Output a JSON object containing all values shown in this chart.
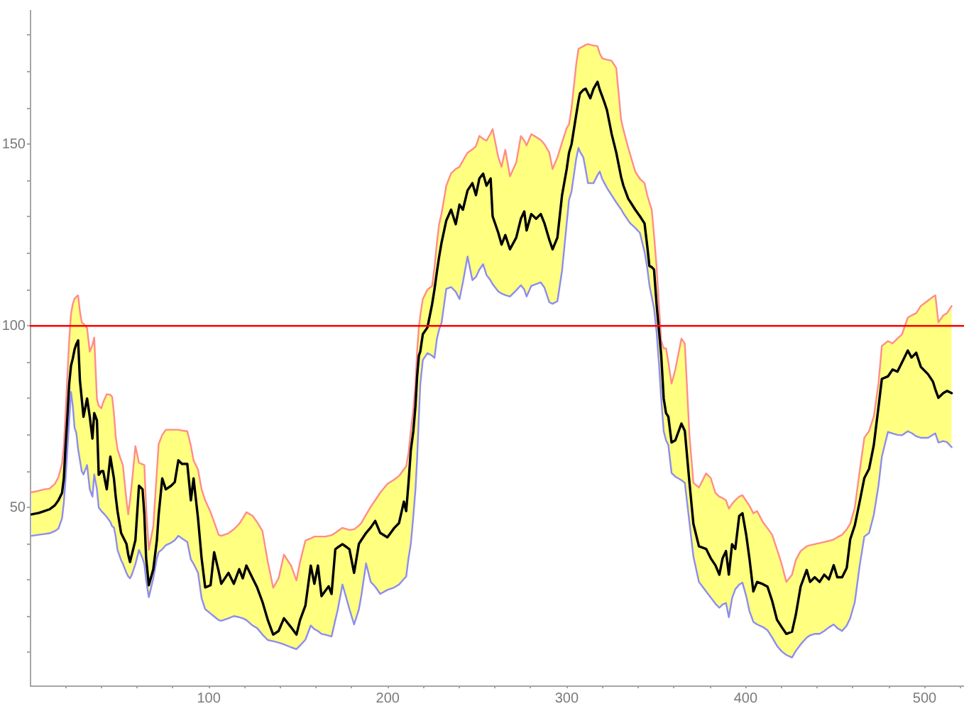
{
  "chart_data": {
    "type": "line",
    "x": [
      1,
      5,
      8,
      11,
      14,
      16,
      18,
      19,
      20,
      21,
      22,
      23,
      24,
      25,
      26,
      27,
      28,
      29,
      30,
      32,
      33.5,
      35,
      36,
      37.5,
      38.5,
      40,
      41,
      43,
      45,
      46,
      47,
      48,
      49,
      51,
      52,
      54,
      55,
      56,
      57,
      59,
      61,
      63,
      64,
      65,
      66.5,
      69,
      71,
      72,
      74,
      76,
      79,
      81,
      83,
      85,
      88,
      90,
      91.5,
      94,
      96,
      98,
      101,
      103,
      105.5,
      107,
      111,
      114,
      117,
      119,
      121,
      124.5,
      127,
      130,
      133,
      136,
      139,
      142,
      146,
      149,
      151,
      154,
      157,
      159,
      161,
      163,
      165,
      167,
      168.6,
      170.7,
      172,
      174.7,
      177.3,
      178.6,
      181.2,
      183.9,
      185.2,
      187.9,
      190.5,
      193,
      195.8,
      199.8,
      203.7,
      206.3,
      209,
      210.3,
      211.6,
      212.9,
      214.3,
      215.5,
      216.4,
      217.4,
      218.2,
      219.6,
      222.2,
      224.8,
      226.1,
      227.5,
      228.7,
      230.1,
      232.7,
      235.4,
      238,
      240.1,
      242,
      244.6,
      247.3,
      249.3,
      251.2,
      253.3,
      255.2,
      257.5,
      258.6,
      261.8,
      263.6,
      265.7,
      268.3,
      271.8,
      274.4,
      276.3,
      277.6,
      280.2,
      282.9,
      285.5,
      287.6,
      290.3,
      292.1,
      294.8,
      297.4,
      300,
      301.3,
      302.7,
      305.3,
      306.6,
      307.4,
      309.3,
      310.6,
      311.9,
      313.2,
      315,
      317.2,
      318.5,
      319.8,
      321.1,
      322.5,
      325.1,
      327.7,
      330.4,
      331.7,
      334.4,
      335.6,
      338.3,
      340.9,
      343.5,
      345,
      346.2,
      347.5,
      348.8,
      350.2,
      351.5,
      352.8,
      354.2,
      355.5,
      356.8,
      358.6,
      360.7,
      364.1,
      366,
      368.6,
      370.8,
      373.9,
      377.9,
      380.5,
      383.1,
      385.3,
      387.1,
      389,
      390.6,
      392.4,
      394.2,
      396.4,
      398.2,
      400.3,
      402.1,
      404.3,
      406.4,
      409.6,
      412.2,
      414.8,
      417.5,
      420.1,
      422.7,
      425.9,
      428,
      430.7,
      434.1,
      436,
      438.6,
      441.3,
      443.9,
      446.5,
      449.2,
      451.2,
      453.9,
      456.5,
      458.4,
      461,
      463.7,
      466.3,
      469,
      471.6,
      474.2,
      476.1,
      479.5,
      482.1,
      484.8,
      487.4,
      490.6,
      492.7,
      495.3,
      497.9,
      501.9,
      504.6,
      506,
      507.7,
      510.4,
      512.5,
      515.1
    ],
    "series": [
      {
        "color": "#000000",
        "values": [
          48.1,
          48.5,
          49,
          49.5,
          50.6,
          52,
          54,
          58,
          67,
          75,
          84,
          89,
          91,
          93.5,
          95,
          96,
          85,
          80,
          75,
          80,
          75,
          69,
          76,
          74,
          59,
          60,
          60,
          55,
          64,
          61,
          58,
          53,
          49,
          43,
          42,
          40,
          37,
          35,
          37,
          41,
          56,
          55,
          48,
          36,
          28.6,
          33,
          41,
          48,
          58,
          55,
          56,
          57,
          63,
          62,
          62,
          52,
          58,
          47,
          36,
          28,
          28.6,
          37.7,
          32.5,
          29,
          32,
          29,
          33,
          30.5,
          34,
          30.5,
          28,
          24,
          19,
          15,
          16,
          19.5,
          17,
          15,
          19,
          23,
          34,
          29,
          34,
          25.6,
          27,
          28.3,
          26.2,
          38.5,
          39,
          39.9,
          39,
          38.5,
          32,
          40,
          41,
          43,
          44.5,
          46.3,
          43,
          41.8,
          44.4,
          45.7,
          51.6,
          49,
          56.7,
          65.8,
          71,
          78,
          86,
          91.8,
          93,
          97.7,
          99.6,
          106,
          110,
          115,
          119,
          123,
          129,
          132,
          128,
          133.4,
          132,
          137.3,
          139.3,
          136,
          140.6,
          141.9,
          138.6,
          140.6,
          130.2,
          125.6,
          122.4,
          125,
          121.1,
          124.3,
          129.5,
          131.5,
          126.3,
          130.8,
          129.5,
          130.8,
          128.2,
          123.7,
          121.1,
          124.3,
          136,
          143.2,
          147.7,
          150,
          158.1,
          162,
          164,
          165,
          165.3,
          164,
          162.7,
          165.3,
          167.2,
          165,
          163.3,
          161.5,
          159.4,
          152.9,
          147.7,
          141,
          138.6,
          135,
          134.1,
          132,
          130.2,
          128.2,
          122,
          116.5,
          116.2,
          115.5,
          106.1,
          99,
          92,
          80,
          76,
          75,
          67.9,
          68.5,
          73.1,
          71.1,
          56.8,
          45.5,
          39.3,
          38.6,
          36,
          34.1,
          31.5,
          36,
          38,
          31.5,
          39.9,
          38.6,
          47.7,
          48.4,
          42.5,
          36,
          26.9,
          29.5,
          28.9,
          28.2,
          24.3,
          19.1,
          17.1,
          15.2,
          15.8,
          20.4,
          28.2,
          32.8,
          29.5,
          30.8,
          29.5,
          31.5,
          30.2,
          34.1,
          30.8,
          30.8,
          33.4,
          41.2,
          45.1,
          51.6,
          58.1,
          60.7,
          67.2,
          77.6,
          85.4,
          86.1,
          88,
          87.4,
          90,
          93.2,
          91.3,
          92.6,
          88.7,
          86.7,
          84.7,
          82.5,
          80.2,
          81.5,
          82.1,
          81.5
        ],
        "upper": [
          54.2,
          54.6,
          55,
          55.2,
          56.5,
          58.4,
          62,
          66.9,
          76,
          86.4,
          96,
          103.2,
          106,
          107.5,
          108,
          108.4,
          104,
          101,
          100.6,
          99.4,
          92.9,
          94.8,
          96.8,
          79.9,
          78,
          77.3,
          79,
          81.2,
          81,
          80.5,
          76,
          69.5,
          66,
          63,
          61.7,
          52,
          48.1,
          52,
          56.5,
          66.9,
          62.3,
          61.9,
          61.7,
          50,
          38.3,
          44.8,
          60,
          67.5,
          70,
          71.4,
          71.4,
          71.4,
          71.4,
          71.2,
          71,
          67,
          63,
          60.4,
          55,
          52,
          48.7,
          46,
          42.5,
          42.2,
          42.9,
          44,
          45.5,
          47,
          48.7,
          47.7,
          46,
          43.5,
          35,
          27.9,
          30.5,
          37,
          34,
          29.9,
          35,
          40.9,
          41.5,
          42,
          42,
          42,
          42,
          42.2,
          42.4,
          43,
          43.5,
          44.4,
          44,
          43.8,
          44,
          45,
          45.7,
          48,
          50.2,
          52,
          54.1,
          56.5,
          57.7,
          58.7,
          60.5,
          61.3,
          65,
          71.1,
          77,
          84,
          93,
          99.6,
          103,
          107.4,
          110,
          111,
          116,
          123,
          128,
          131,
          138.6,
          142,
          143.2,
          143.8,
          145.5,
          147.7,
          148.6,
          149.5,
          152.3,
          151.5,
          151,
          153,
          154.2,
          146.4,
          143.8,
          148.5,
          141.2,
          145,
          152.3,
          151,
          149.7,
          152.8,
          152,
          151.2,
          150,
          147.7,
          143.2,
          146.4,
          150.5,
          154.5,
          155.5,
          160,
          172,
          176.3,
          176.5,
          177,
          177.4,
          177.6,
          177.4,
          177.2,
          177,
          175,
          173.7,
          173.5,
          173.3,
          173,
          171,
          156.8,
          154,
          149,
          147,
          142.5,
          140.5,
          139.3,
          136,
          134,
          132.1,
          125,
          116.5,
          106,
          96,
          93.8,
          93.8,
          90,
          84.1,
          88,
          96.5,
          95.1,
          69.8,
          56.8,
          55.5,
          59.4,
          58.1,
          54,
          53,
          52.6,
          52,
          49.7,
          51,
          52,
          53,
          53.4,
          51.8,
          50.5,
          48.4,
          49,
          46,
          44.3,
          42.5,
          38.5,
          34.5,
          29.5,
          31.5,
          35.5,
          38,
          39.3,
          39.6,
          39.9,
          40.2,
          40.5,
          40.8,
          41.2,
          41.8,
          42.5,
          44,
          45.5,
          50,
          60,
          69.2,
          71.1,
          75,
          84.1,
          94.5,
          95.8,
          95.2,
          96.5,
          97.7,
          102.3,
          102.9,
          103.5,
          105.5,
          107,
          108,
          108.4,
          101,
          102.9,
          103.5,
          105.5
        ],
        "lower": [
          42.2,
          42.5,
          42.7,
          42.9,
          43.5,
          44.2,
          47,
          51.3,
          58,
          66,
          74,
          81.8,
          78,
          72,
          70.5,
          66,
          63,
          60,
          59.1,
          61.7,
          55,
          53,
          59.1,
          55,
          50,
          49,
          48.5,
          47.4,
          46,
          44.8,
          44.5,
          42,
          38.3,
          35.5,
          34.5,
          32,
          31,
          30.5,
          31.5,
          34.4,
          38.3,
          36,
          34.4,
          30,
          25.3,
          30.5,
          36,
          37.7,
          38.5,
          39.6,
          40.3,
          41,
          42.2,
          41.5,
          40.5,
          35.7,
          34.5,
          32,
          25,
          22,
          20.8,
          20,
          19,
          18.8,
          19.5,
          20.1,
          19.8,
          19.5,
          19,
          17.5,
          16.8,
          15,
          13.5,
          13.2,
          12.8,
          12.3,
          11.5,
          11,
          12,
          13.6,
          17.5,
          16.5,
          16,
          15.2,
          15,
          14.7,
          14.5,
          19,
          21.7,
          28.8,
          24.3,
          22,
          17.8,
          22,
          25.6,
          34.6,
          29.5,
          28.2,
          26.2,
          27.3,
          28,
          28.8,
          30.3,
          31,
          36,
          40,
          47.7,
          55,
          63.3,
          75,
          84,
          90.6,
          92.5,
          91.8,
          91.2,
          96.5,
          99,
          100.9,
          110.2,
          110.7,
          109.4,
          107.4,
          112,
          119.1,
          112.6,
          113.5,
          115.5,
          117,
          114,
          112.5,
          111.5,
          109.5,
          108.9,
          108.5,
          108.1,
          109.8,
          111.2,
          110,
          108.1,
          111,
          111.5,
          112,
          110.5,
          106.5,
          106.1,
          106.8,
          115.2,
          128.2,
          134.7,
          137,
          146,
          149,
          148,
          146.4,
          143,
          139.3,
          139.3,
          139.3,
          141.5,
          142.5,
          140.5,
          139.3,
          138,
          136,
          134,
          132.1,
          131,
          129,
          128.2,
          127,
          125.6,
          120.4,
          116,
          111.3,
          108,
          104.8,
          98.4,
          90,
          80,
          71,
          68.5,
          67.2,
          59.5,
          58.5,
          57.5,
          56.8,
          45.8,
          36.5,
          29.5,
          26.9,
          25.2,
          23.5,
          22.4,
          23.3,
          23.7,
          19.8,
          25,
          27.5,
          28.8,
          29.3,
          25.6,
          21.5,
          18.5,
          17.8,
          17.1,
          16.2,
          14.2,
          11.9,
          10.4,
          9.4,
          8.7,
          10.5,
          12.3,
          14.2,
          14.8,
          15.2,
          15.2,
          16,
          17,
          17.8,
          16.8,
          16,
          17.5,
          19.5,
          24,
          34,
          42,
          43,
          48,
          56,
          64,
          70.8,
          70.4,
          70,
          69.9,
          71,
          70.5,
          69.6,
          69.2,
          69.2,
          70,
          70.4,
          67.9,
          68.3,
          68,
          66.6
        ]
      },
      {
        "color": "#ff8c8c",
        "values": [
          54.2,
          54.6,
          55,
          55.2,
          56.5,
          58.4,
          62,
          66.9,
          76,
          86.4,
          96,
          103.2,
          106,
          107.5,
          108,
          108.4,
          104,
          101,
          100.6,
          99.4,
          92.9,
          94.8,
          96.8,
          79.9,
          78,
          77.3,
          79,
          81.2,
          81,
          80.5,
          76,
          69.5,
          66,
          63,
          61.7,
          52,
          48.1,
          52,
          56.5,
          66.9,
          62.3,
          61.9,
          61.7,
          50,
          38.3,
          44.8,
          60,
          67.5,
          70,
          71.4,
          71.4,
          71.4,
          71.4,
          71.2,
          71,
          67,
          63,
          60.4,
          55,
          52,
          48.7,
          46,
          42.5,
          42.2,
          42.9,
          44,
          45.5,
          47,
          48.7,
          47.7,
          46,
          43.5,
          35,
          27.9,
          30.5,
          37,
          34,
          29.9,
          35,
          40.9,
          41.5,
          42,
          42,
          42,
          42,
          42.2,
          42.4,
          43,
          43.5,
          44.4,
          44,
          43.8,
          44,
          45,
          45.7,
          48,
          50.2,
          52,
          54.1,
          56.5,
          57.7,
          58.7,
          60.5,
          61.3,
          65,
          71.1,
          77,
          84,
          93,
          99.6,
          103,
          107.4,
          110,
          111,
          116,
          123,
          128,
          131,
          138.6,
          142,
          143.2,
          143.8,
          145.5,
          147.7,
          148.6,
          149.5,
          152.3,
          151.5,
          151,
          153,
          154.2,
          146.4,
          143.8,
          148.5,
          141.2,
          145,
          152.3,
          151,
          149.7,
          152.8,
          152,
          151.2,
          150,
          147.7,
          143.2,
          146.4,
          150.5,
          154.5,
          155.5,
          160,
          172,
          176.3,
          176.5,
          177,
          177.4,
          177.6,
          177.4,
          177.2,
          177,
          175,
          173.7,
          173.5,
          173.3,
          173,
          171,
          156.8,
          154,
          149,
          147,
          142.5,
          140.5,
          139.3,
          136,
          134,
          132.1,
          125,
          116.5,
          106,
          96,
          93.8,
          93.8,
          90,
          84.1,
          88,
          96.5,
          95.1,
          69.8,
          56.8,
          55.5,
          59.4,
          58.1,
          54,
          53,
          52.6,
          52,
          49.7,
          51,
          52,
          53,
          53.4,
          51.8,
          50.5,
          48.4,
          49,
          46,
          44.3,
          42.5,
          38.5,
          34.5,
          29.5,
          31.5,
          35.5,
          38,
          39.3,
          39.6,
          39.9,
          40.2,
          40.5,
          40.8,
          41.2,
          41.8,
          42.5,
          44,
          45.5,
          50,
          60,
          69.2,
          71.1,
          75,
          84.1,
          94.5,
          95.8,
          95.2,
          96.5,
          97.7,
          102.3,
          102.9,
          103.5,
          105.5,
          107,
          108,
          108.4,
          101,
          102.9,
          103.5,
          105.5
        ]
      },
      {
        "color": "#8c8cf0",
        "values": [
          42.2,
          42.5,
          42.7,
          42.9,
          43.5,
          44.2,
          47,
          51.3,
          58,
          66,
          74,
          81.8,
          78,
          72,
          70.5,
          66,
          63,
          60,
          59.1,
          61.7,
          55,
          53,
          59.1,
          55,
          50,
          49,
          48.5,
          47.4,
          46,
          44.8,
          44.5,
          42,
          38.3,
          35.5,
          34.5,
          32,
          31,
          30.5,
          31.5,
          34.4,
          38.3,
          36,
          34.4,
          30,
          25.3,
          30.5,
          36,
          37.7,
          38.5,
          39.6,
          40.3,
          41,
          42.2,
          41.5,
          40.5,
          35.7,
          34.5,
          32,
          25,
          22,
          20.8,
          20,
          19,
          18.8,
          19.5,
          20.1,
          19.8,
          19.5,
          19,
          17.5,
          16.8,
          15,
          13.5,
          13.2,
          12.8,
          12.3,
          11.5,
          11,
          12,
          13.6,
          17.5,
          16.5,
          16,
          15.2,
          15,
          14.7,
          14.5,
          19,
          21.7,
          28.8,
          24.3,
          22,
          17.8,
          22,
          25.6,
          34.6,
          29.5,
          28.2,
          26.2,
          27.3,
          28,
          28.8,
          30.3,
          31,
          36,
          40,
          47.7,
          55,
          63.3,
          75,
          84,
          90.6,
          92.5,
          91.8,
          91.2,
          96.5,
          99,
          100.9,
          110.2,
          110.7,
          109.4,
          107.4,
          112,
          119.1,
          112.6,
          113.5,
          115.5,
          117,
          114,
          112.5,
          111.5,
          109.5,
          108.9,
          108.5,
          108.1,
          109.8,
          111.2,
          110,
          108.1,
          111,
          111.5,
          112,
          110.5,
          106.5,
          106.1,
          106.8,
          115.2,
          128.2,
          134.7,
          137,
          146,
          149,
          148,
          146.4,
          143,
          139.3,
          139.3,
          139.3,
          141.5,
          142.5,
          140.5,
          139.3,
          138,
          136,
          134,
          132.1,
          131,
          129,
          128.2,
          127,
          125.6,
          120.4,
          116,
          111.3,
          108,
          104.8,
          98.4,
          90,
          80,
          71,
          68.5,
          67.2,
          59.5,
          58.5,
          57.5,
          56.8,
          45.8,
          36.5,
          29.5,
          26.9,
          25.2,
          23.5,
          22.4,
          23.3,
          23.7,
          19.8,
          25,
          27.5,
          28.8,
          29.3,
          25.6,
          21.5,
          18.5,
          17.8,
          17.1,
          16.2,
          14.2,
          11.9,
          10.4,
          9.4,
          8.7,
          10.5,
          12.3,
          14.2,
          14.8,
          15.2,
          15.2,
          16,
          17,
          17.8,
          16.8,
          16,
          17.5,
          19.5,
          24,
          34,
          42,
          43,
          48,
          56,
          64,
          70.8,
          70.4,
          70,
          69.9,
          71,
          70.5,
          69.6,
          69.2,
          69.2,
          70,
          70.4,
          67.9,
          68.3,
          68,
          66.6
        ]
      }
    ],
    "xlim": [
      0,
      522
    ],
    "xticks": [
      {
        "value": 20,
        "label": null
      },
      {
        "value": 40,
        "label": null
      },
      {
        "value": 60,
        "label": null
      },
      {
        "value": 80,
        "label": null
      },
      100,
      {
        "value": 120,
        "label": null
      },
      {
        "value": 140,
        "label": null
      },
      {
        "value": 160,
        "label": null
      },
      {
        "value": 180,
        "label": null
      },
      200,
      {
        "value": 220,
        "label": null
      },
      {
        "value": 240,
        "label": null
      },
      {
        "value": 260,
        "label": null
      },
      {
        "value": 280,
        "label": null
      },
      300,
      {
        "value": 320,
        "label": null
      },
      {
        "value": 340,
        "label": null
      },
      {
        "value": 360,
        "label": null
      },
      {
        "value": 380,
        "label": null
      },
      400,
      {
        "value": 420,
        "label": null
      },
      {
        "value": 440,
        "label": null
      },
      {
        "value": 460,
        "label": null
      },
      {
        "value": 480,
        "label": null
      },
      500,
      {
        "value": 520,
        "label": null
      }
    ],
    "ylim": [
      1,
      187
    ],
    "yticks": [
      {
        "value": 10,
        "label": null
      },
      {
        "value": 20,
        "label": null
      },
      {
        "value": 30,
        "label": null
      },
      {
        "value": 40,
        "label": null
      },
      50,
      {
        "value": 60,
        "label": null
      },
      {
        "value": 70,
        "label": null
      },
      {
        "value": 80,
        "label": null
      },
      {
        "value": 90,
        "label": null
      },
      100,
      {
        "value": 110,
        "label": null
      },
      {
        "value": 120,
        "label": null
      },
      {
        "value": 130,
        "label": null
      },
      {
        "value": 140,
        "label": null
      },
      150,
      {
        "value": 160,
        "label": null
      },
      {
        "value": 170,
        "label": null
      },
      {
        "value": 180,
        "label": null
      }
    ],
    "ref_lines": [
      {
        "axis": "y",
        "value": 100,
        "color": "#ff0000"
      }
    ]
  }
}
